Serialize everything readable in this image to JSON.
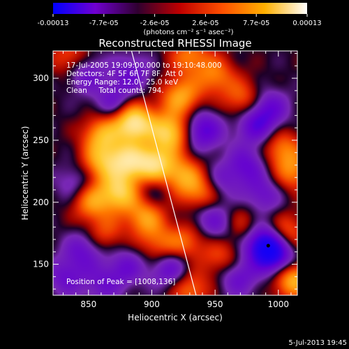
{
  "colorbar": {
    "tick_labels": [
      "-0.00013",
      "-7.7e-05",
      "-2.6e-05",
      "2.6e-05",
      "7.7e-05",
      "0.00013"
    ],
    "min": -0.00013,
    "max": 0.00013,
    "units": "(photons cm⁻² s⁻¹ asec⁻²)",
    "colors": [
      "#0000ff",
      "#7000d0",
      "#300030",
      "#c00000",
      "#ff5000",
      "#ffb000",
      "#ffffff"
    ]
  },
  "annotations": {
    "time_range": "17-Jul-2005 19:09:00.000 to 19:10:48.000",
    "detectors": "Detectors: 4F 5F 6F 7F 8F, Att 0",
    "energy_range": "Energy Range: 12.0 - 25.0 keV",
    "clean": "Clean     Total counts: 794.",
    "peak": "Position of Peak = [1008,136]"
  },
  "footer": {
    "date": "5-Jul-2013 19:45"
  },
  "chart_data": {
    "type": "heatmap",
    "title": "Reconstructed RHESSI Image",
    "xlabel": "Heliocentric X (arcsec)",
    "ylabel": "Heliocentric Y (arcsec)",
    "xlim": [
      822,
      1015
    ],
    "ylim": [
      125,
      322
    ],
    "x_ticks": [
      850,
      900,
      950,
      1000
    ],
    "y_ticks": [
      150,
      200,
      250,
      300
    ],
    "limb_line": {
      "x": [
        884,
        935
      ],
      "y": [
        322,
        125
      ]
    },
    "peak": {
      "x": 1008,
      "y": 136
    },
    "marker": {
      "x": 992,
      "y": 165
    },
    "sources": [
      {
        "x": 886,
        "y": 264,
        "amp": 1.0
      },
      {
        "x": 914,
        "y": 256,
        "amp": 0.8
      },
      {
        "x": 902,
        "y": 230,
        "amp": 0.85
      },
      {
        "x": 881,
        "y": 233,
        "amp": 0.75
      },
      {
        "x": 861,
        "y": 254,
        "amp": 0.6
      },
      {
        "x": 860,
        "y": 232,
        "amp": 0.55
      },
      {
        "x": 875,
        "y": 208,
        "amp": 0.75
      },
      {
        "x": 925,
        "y": 221,
        "amp": 0.55
      },
      {
        "x": 940,
        "y": 206,
        "amp": 0.5
      },
      {
        "x": 895,
        "y": 188,
        "amp": 0.55
      },
      {
        "x": 852,
        "y": 201,
        "amp": 0.55
      },
      {
        "x": 923,
        "y": 285,
        "amp": 0.6
      },
      {
        "x": 950,
        "y": 302,
        "amp": 0.45
      },
      {
        "x": 972,
        "y": 283,
        "amp": 0.4
      },
      {
        "x": 1003,
        "y": 243,
        "amp": 0.45
      },
      {
        "x": 836,
        "y": 316,
        "amp": 0.4
      },
      {
        "x": 930,
        "y": 318,
        "amp": 0.45
      },
      {
        "x": 862,
        "y": 174,
        "amp": 0.35
      },
      {
        "x": 927,
        "y": 168,
        "amp": 0.4
      },
      {
        "x": 905,
        "y": 166,
        "amp": 0.35
      },
      {
        "x": 955,
        "y": 155,
        "amp": 0.35
      },
      {
        "x": 930,
        "y": 130,
        "amp": 0.45
      },
      {
        "x": 1011,
        "y": 139,
        "amp": 0.8
      },
      {
        "x": 1006,
        "y": 175,
        "amp": 0.45
      },
      {
        "x": 1012,
        "y": 224,
        "amp": 0.45
      },
      {
        "x": 968,
        "y": 182,
        "amp": 0.4
      },
      {
        "x": 847,
        "y": 305,
        "amp": -0.4
      },
      {
        "x": 884,
        "y": 304,
        "amp": -0.35
      },
      {
        "x": 870,
        "y": 281,
        "amp": -0.35
      },
      {
        "x": 940,
        "y": 258,
        "amp": -0.55
      },
      {
        "x": 982,
        "y": 262,
        "amp": -0.45
      },
      {
        "x": 993,
        "y": 276,
        "amp": -0.4
      },
      {
        "x": 975,
        "y": 230,
        "amp": -0.4
      },
      {
        "x": 988,
        "y": 206,
        "amp": -0.35
      },
      {
        "x": 954,
        "y": 216,
        "amp": -0.3
      },
      {
        "x": 958,
        "y": 181,
        "amp": -0.35
      },
      {
        "x": 990,
        "y": 165,
        "amp": -0.95
      },
      {
        "x": 1002,
        "y": 152,
        "amp": -0.55
      },
      {
        "x": 968,
        "y": 140,
        "amp": -0.4
      },
      {
        "x": 915,
        "y": 146,
        "amp": -0.45
      },
      {
        "x": 880,
        "y": 148,
        "amp": -0.35
      },
      {
        "x": 847,
        "y": 162,
        "amp": -0.4
      },
      {
        "x": 832,
        "y": 140,
        "amp": -0.35
      },
      {
        "x": 840,
        "y": 215,
        "amp": -0.3
      },
      {
        "x": 900,
        "y": 212,
        "amp": -0.25
      },
      {
        "x": 943,
        "y": 190,
        "amp": -0.3
      },
      {
        "x": 861,
        "y": 134,
        "amp": -0.3
      }
    ]
  }
}
